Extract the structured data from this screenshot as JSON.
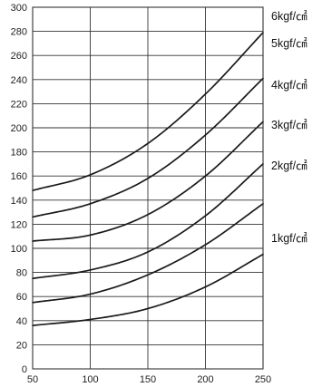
{
  "chart_data": {
    "type": "line",
    "title": "",
    "xlabel": "",
    "ylabel": "",
    "xlim": [
      50,
      250
    ],
    "ylim": [
      0,
      300
    ],
    "x_ticks": [
      50,
      100,
      150,
      200,
      250
    ],
    "y_ticks": [
      0,
      20,
      40,
      60,
      80,
      100,
      120,
      140,
      160,
      180,
      200,
      220,
      240,
      260,
      280,
      300
    ],
    "grid": true,
    "legend": "right",
    "line_color": "#1a1a1a",
    "grid_color": "#333333",
    "series": [
      {
        "name": "1kgf/㎠",
        "x": [
          50,
          100,
          150,
          200,
          250
        ],
        "values": [
          36,
          41,
          50,
          68,
          95
        ]
      },
      {
        "name": "2kgf/㎠",
        "x": [
          50,
          100,
          150,
          200,
          250
        ],
        "values": [
          55,
          62,
          78,
          103,
          137
        ]
      },
      {
        "name": "3kgf/㎠",
        "x": [
          50,
          100,
          150,
          200,
          250
        ],
        "values": [
          75,
          82,
          97,
          127,
          170
        ]
      },
      {
        "name": "4kgf/㎠",
        "x": [
          50,
          100,
          150,
          200,
          250
        ],
        "values": [
          106,
          111,
          128,
          160,
          205
        ]
      },
      {
        "name": "5kgf/㎠",
        "x": [
          50,
          100,
          150,
          200,
          250
        ],
        "values": [
          126,
          137,
          158,
          194,
          241
        ]
      },
      {
        "name": "6kgf/㎠",
        "x": [
          50,
          100,
          150,
          200,
          250
        ],
        "values": [
          148,
          161,
          187,
          228,
          279
        ]
      }
    ]
  }
}
